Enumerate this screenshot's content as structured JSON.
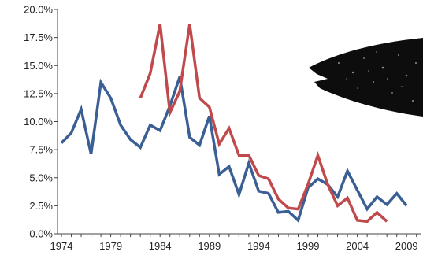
{
  "chart_data": {
    "type": "line",
    "title": "",
    "xlabel": "",
    "ylabel": "",
    "xlim": [
      1974,
      2010
    ],
    "ylim": [
      0,
      20
    ],
    "x_ticks": [
      1974,
      1979,
      1984,
      1989,
      1994,
      1999,
      2004,
      2009
    ],
    "x_tick_labels": [
      "1974",
      "1979",
      "1984",
      "1989",
      "1994",
      "1999",
      "2004",
      "2009"
    ],
    "y_ticks": [
      0,
      2.5,
      5,
      7.5,
      10,
      12.5,
      15,
      17.5,
      20
    ],
    "y_tick_labels": [
      "0.0%",
      "2.5%",
      "5.0%",
      "7.5%",
      "10.0%",
      "12.5%",
      "15.0%",
      "17.5%",
      "20.0%"
    ],
    "grid": false,
    "legend": false,
    "series": [
      {
        "color": "#3a5f94",
        "points": [
          [
            1974,
            8.1
          ],
          [
            1975,
            9.0
          ],
          [
            1976,
            11.1
          ],
          [
            1977,
            7.1
          ],
          [
            1978,
            13.5
          ],
          [
            1979,
            12.1
          ],
          [
            1980,
            9.7
          ],
          [
            1981,
            8.4
          ],
          [
            1982,
            7.7
          ],
          [
            1983,
            9.7
          ],
          [
            1984,
            9.2
          ],
          [
            1985,
            11.4
          ],
          [
            1986,
            14.0
          ],
          [
            1987,
            8.6
          ],
          [
            1988,
            7.9
          ],
          [
            1989,
            10.5
          ],
          [
            1990,
            5.3
          ],
          [
            1991,
            6.0
          ],
          [
            1992,
            3.5
          ],
          [
            1993,
            6.3
          ],
          [
            1994,
            3.8
          ],
          [
            1995,
            3.6
          ],
          [
            1996,
            1.9
          ],
          [
            1997,
            2.0
          ],
          [
            1998,
            1.2
          ],
          [
            1999,
            4.1
          ],
          [
            2000,
            4.9
          ],
          [
            2001,
            4.4
          ],
          [
            2002,
            3.3
          ],
          [
            2003,
            5.6
          ],
          [
            2004,
            3.9
          ],
          [
            2005,
            2.2
          ],
          [
            2006,
            3.3
          ],
          [
            2007,
            2.6
          ],
          [
            2008,
            3.6
          ],
          [
            2009,
            2.5
          ]
        ]
      },
      {
        "color": "#c0494b",
        "points": [
          [
            1982,
            12.1
          ],
          [
            1983,
            14.3
          ],
          [
            1984,
            18.7
          ],
          [
            1985,
            10.8
          ],
          [
            1986,
            12.7
          ],
          [
            1987,
            18.7
          ],
          [
            1988,
            12.1
          ],
          [
            1989,
            11.3
          ],
          [
            1990,
            8.0
          ],
          [
            1991,
            9.4
          ],
          [
            1992,
            7.0
          ],
          [
            1993,
            7.0
          ],
          [
            1994,
            5.2
          ],
          [
            1995,
            4.9
          ],
          [
            1996,
            3.1
          ],
          [
            1997,
            2.3
          ],
          [
            1998,
            2.2
          ],
          [
            1999,
            4.4
          ],
          [
            2000,
            7.0
          ],
          [
            2001,
            4.4
          ],
          [
            2002,
            2.5
          ],
          [
            2003,
            3.2
          ],
          [
            2004,
            1.2
          ],
          [
            2005,
            1.1
          ],
          [
            2006,
            1.9
          ],
          [
            2007,
            1.1
          ]
        ]
      }
    ]
  }
}
